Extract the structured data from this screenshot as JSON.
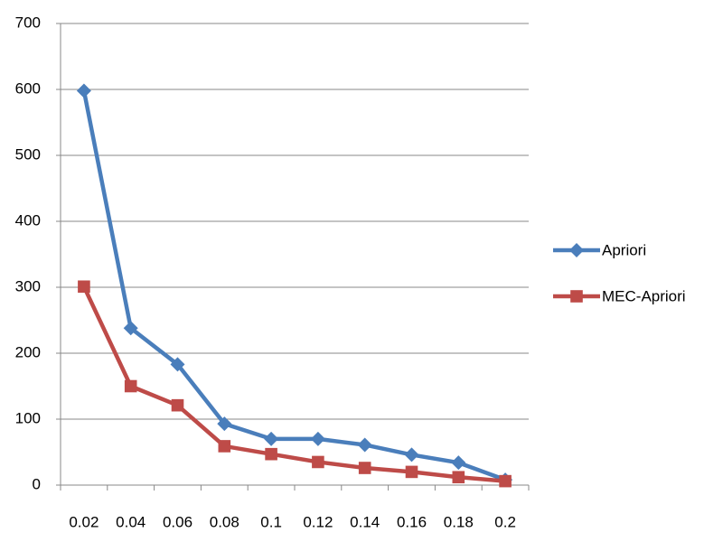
{
  "chart_data": {
    "type": "line",
    "categories": [
      "0.02",
      "0.04",
      "0.06",
      "0.08",
      "0.1",
      "0.12",
      "0.14",
      "0.16",
      "0.18",
      "0.2"
    ],
    "series": [
      {
        "name": "Apriori",
        "color": "#4a7ebb",
        "marker": "diamond",
        "values": [
          598,
          238,
          183,
          93,
          70,
          70,
          61,
          46,
          34,
          8
        ]
      },
      {
        "name": "MEC-Apriori",
        "color": "#be4b48",
        "marker": "square",
        "values": [
          301,
          150,
          121,
          59,
          47,
          35,
          26,
          20,
          12,
          6
        ]
      }
    ],
    "ylim": [
      0,
      700
    ],
    "yticks": [
      0,
      100,
      200,
      300,
      400,
      500,
      600,
      700
    ],
    "grid": true,
    "legend": "right"
  }
}
